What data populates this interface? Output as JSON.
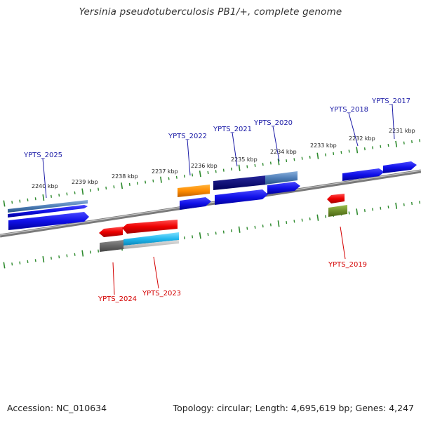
{
  "title": "Yersinia pseudotuberculosis PB1/+, complete genome",
  "footer": {
    "accession": "Accession: NC_010634",
    "summary": "Topology: circular; Length: 4,695,619 bp; Genes: 4,247"
  },
  "colors": {
    "forward_label": "#1a1aa6",
    "reverse_label": "#d40000",
    "tick": "#2d8a2d",
    "backbone": "#8a8a8a"
  },
  "ticks": [
    "2231 kbp",
    "2232 kbp",
    "2233 kbp",
    "2234 kbp",
    "2235 kbp",
    "2236 kbp",
    "2237 kbp",
    "2238 kbp",
    "2239 kbp",
    "2240 kbp"
  ],
  "genes_forward": [
    "YPTS_2017",
    "YPTS_2018",
    "YPTS_2020",
    "YPTS_2021",
    "YPTS_2022",
    "YPTS_2025"
  ],
  "genes_reverse": [
    "YPTS_2019",
    "YPTS_2023",
    "YPTS_2024"
  ]
}
